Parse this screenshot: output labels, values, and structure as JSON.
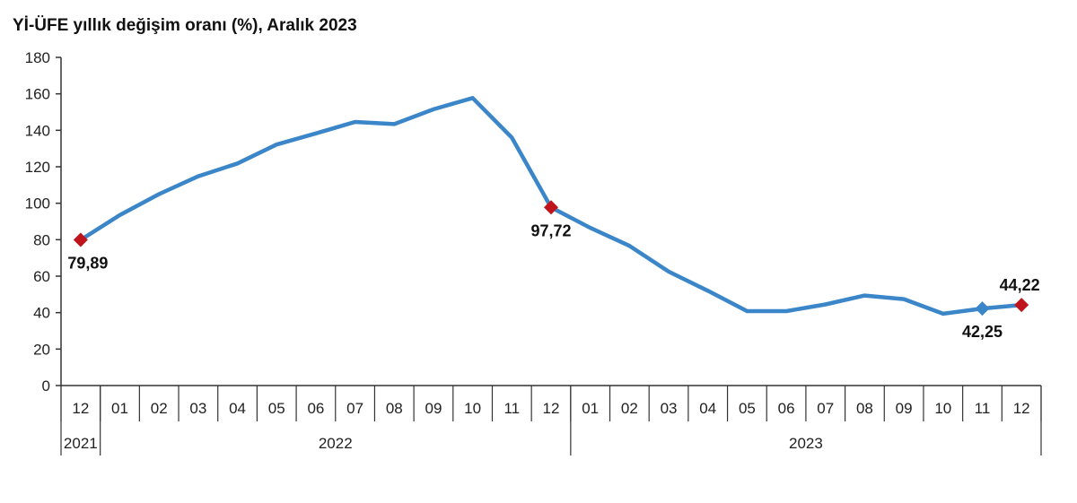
{
  "chart_data": {
    "type": "line",
    "title": "Yİ-ÜFE yıllık değişim oranı (%), Aralık 2023",
    "xlabel": "",
    "ylabel": "",
    "ylim": [
      0,
      180
    ],
    "yticks": [
      "0",
      "20",
      "40",
      "60",
      "80",
      "100",
      "120",
      "140",
      "160",
      "180"
    ],
    "categories": [
      "12",
      "01",
      "02",
      "03",
      "04",
      "05",
      "06",
      "07",
      "08",
      "09",
      "10",
      "11",
      "12",
      "01",
      "02",
      "03",
      "04",
      "05",
      "06",
      "07",
      "08",
      "09",
      "10",
      "11",
      "12"
    ],
    "year_groups": [
      {
        "label": "2021",
        "start": 0,
        "end": 0
      },
      {
        "label": "2022",
        "start": 1,
        "end": 12
      },
      {
        "label": "2023",
        "start": 13,
        "end": 24
      }
    ],
    "series": [
      {
        "values": [
          79.89,
          93.5,
          105.0,
          114.8,
          121.8,
          132.2,
          138.3,
          144.6,
          143.4,
          151.5,
          157.7,
          136.0,
          97.72,
          86.5,
          76.6,
          62.5,
          52.0,
          40.8,
          40.8,
          44.5,
          49.4,
          47.4,
          39.4,
          42.25,
          44.22
        ]
      }
    ],
    "annotations": [
      {
        "index": 0,
        "label": "79,89",
        "marker": "red-diamond",
        "position": "below"
      },
      {
        "index": 12,
        "label": "97,72",
        "marker": "red-diamond",
        "position": "below"
      },
      {
        "index": 23,
        "label": "42,25",
        "marker": "blue-diamond",
        "position": "below"
      },
      {
        "index": 24,
        "label": "44,22",
        "marker": "red-diamond",
        "position": "above"
      }
    ],
    "colors": {
      "line": "#3a86c8",
      "marker_red": "#c0141c",
      "marker_blue": "#3a86c8",
      "axis": "#333333"
    },
    "grid": false,
    "legend": "none"
  }
}
